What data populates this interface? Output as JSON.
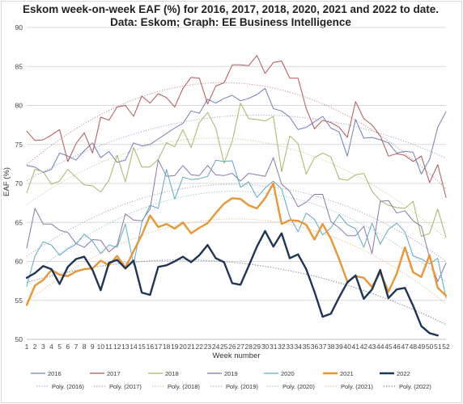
{
  "chart_data": {
    "type": "line",
    "title": "Eskom week-on-week EAF (%) for 2016, 2017, 2018, 2020, 2021 and 2022 to date.",
    "subtitle": "Data: Eskom; Graph: EE Business Intelligence",
    "xlabel": "Week number",
    "ylabel": "EAF (%)",
    "x": [
      1,
      2,
      3,
      4,
      5,
      6,
      7,
      8,
      9,
      10,
      11,
      12,
      13,
      14,
      15,
      16,
      17,
      18,
      19,
      20,
      21,
      22,
      23,
      24,
      25,
      26,
      27,
      28,
      29,
      30,
      31,
      32,
      33,
      34,
      35,
      36,
      37,
      38,
      39,
      40,
      41,
      42,
      43,
      44,
      45,
      46,
      47,
      48,
      49,
      50,
      51,
      52
    ],
    "ylim": [
      50,
      90
    ],
    "yticks": [
      50,
      55,
      60,
      65,
      70,
      75,
      80,
      85,
      90
    ],
    "grid": "horizontal",
    "legend_position": "bottom",
    "series": [
      {
        "name": "2016",
        "color": "#7080b8",
        "width": 1,
        "values": [
          72.3,
          72.1,
          71.4,
          71.8,
          73.9,
          73.5,
          73.0,
          74.2,
          75.2,
          73.3,
          74.1,
          72.7,
          73.0,
          75.2,
          74.8,
          75.0,
          75.7,
          76.4,
          77.1,
          77.7,
          79.3,
          79.0,
          80.8,
          80.3,
          80.9,
          81.3,
          80.6,
          80.9,
          81.4,
          82.2,
          79.6,
          79.3,
          78.5,
          76.9,
          77.2,
          77.9,
          78.6,
          77.1,
          76.6,
          73.5,
          78.2,
          75.8,
          75.9,
          75.6,
          75.2,
          73.9,
          74.1,
          74.0,
          71.2,
          73.1,
          77.2,
          79.2
        ]
      },
      {
        "name": "2017",
        "color": "#b05555",
        "width": 1,
        "values": [
          76.7,
          75.5,
          75.6,
          76.2,
          76.9,
          72.8,
          75.1,
          76.5,
          73.9,
          78.5,
          78.1,
          79.8,
          80.0,
          78.6,
          81.2,
          80.3,
          81.5,
          81.0,
          79.8,
          82.2,
          83.6,
          83.5,
          80.2,
          82.5,
          82.9,
          85.2,
          85.2,
          85.1,
          86.4,
          84.1,
          85.5,
          85.7,
          83.5,
          83.5,
          79.6,
          77.0,
          78.1,
          77.8,
          77.2,
          75.9,
          80.5,
          78.3,
          77.5,
          76.1,
          73.5,
          73.8,
          73.6,
          72.8,
          73.5,
          70.1,
          72.4,
          68.2
        ]
      },
      {
        "name": "2018",
        "color": "#a8b468",
        "width": 1,
        "values": [
          68.8,
          71.8,
          71.5,
          69.9,
          70.3,
          71.8,
          70.8,
          69.8,
          69.7,
          68.9,
          70.4,
          73.6,
          70.2,
          74.6,
          72.1,
          72.1,
          73.1,
          75.2,
          74.7,
          76.9,
          74.6,
          77.8,
          79.1,
          77.1,
          72.6,
          75.4,
          80.3,
          78.3,
          78.2,
          78.0,
          78.6,
          71.5,
          76.1,
          75.1,
          71.2,
          73.3,
          73.9,
          73.4,
          70.6,
          70.4,
          71.1,
          71.3,
          69.0,
          67.8,
          67.2,
          66.9,
          66.8,
          67.7,
          63.2,
          63.6,
          66.7,
          63.1
        ]
      },
      {
        "name": "2019",
        "color": "#8878a8",
        "width": 1,
        "values": [
          61.7,
          66.8,
          64.8,
          64.8,
          64.0,
          63.7,
          62.3,
          61.8,
          62.8,
          62.7,
          61.2,
          62.1,
          66.1,
          65.3,
          65.2,
          66.7,
          73.0,
          70.9,
          71.0,
          72.3,
          71.1,
          71.0,
          72.3,
          71.1,
          71.0,
          71.3,
          70.3,
          71.3,
          71.1,
          70.9,
          73.3,
          69.9,
          69.0,
          67.0,
          67.6,
          68.6,
          68.6,
          65.1,
          64.3,
          63.3,
          63.3,
          64.5,
          61.0,
          67.7,
          67.8,
          66.2,
          66.5,
          65.2,
          64.5,
          60.5,
          57.4,
          59.8
        ]
      },
      {
        "name": "2020",
        "color": "#60a8c0",
        "width": 1,
        "values": [
          56.8,
          60.7,
          62.5,
          62.1,
          60.8,
          61.6,
          62.2,
          63.5,
          62.6,
          61.0,
          62.1,
          61.8,
          64.8,
          59.6,
          65.0,
          67.2,
          66.8,
          71.8,
          68.0,
          70.8,
          70.5,
          70.6,
          70.9,
          73.0,
          72.8,
          72.9,
          69.5,
          70.2,
          68.2,
          69.4,
          70.3,
          69.3,
          65.7,
          63.8,
          66.2,
          65.4,
          63.4,
          64.3,
          66.0,
          64.7,
          64.2,
          61.8,
          64.9,
          62.2,
          64.1,
          64.9,
          63.8,
          60.7,
          60.3,
          59.7,
          60.4,
          55.3
        ]
      },
      {
        "name": "2021",
        "color": "#e8963a",
        "width": 2.4,
        "values": [
          54.4,
          56.9,
          57.6,
          58.9,
          58.3,
          58.1,
          58.7,
          59.0,
          59.1,
          60.1,
          59.5,
          60.7,
          59.2,
          61.3,
          63.4,
          65.9,
          64.4,
          64.8,
          64.2,
          65.0,
          63.6,
          64.3,
          64.9,
          66.2,
          67.4,
          68.1,
          68.0,
          67.2,
          66.8,
          68.1,
          70.0,
          64.8,
          65.3,
          65.2,
          64.7,
          62.8,
          64.8,
          62.9,
          60.3,
          57.4,
          58.1,
          57.9,
          56.7,
          58.6,
          56.1,
          58.4,
          61.8,
          58.6,
          58.0,
          60.8,
          56.6,
          55.6
        ]
      },
      {
        "name": "2022",
        "color": "#1e3554",
        "width": 2.4,
        "values": [
          57.9,
          58.5,
          59.4,
          59.0,
          57.1,
          59.3,
          60.3,
          60.6,
          58.9,
          56.3,
          59.8,
          60.2,
          59.1,
          60.1,
          56.0,
          55.7,
          59.3,
          59.5,
          60.0,
          60.6,
          59.9,
          60.8,
          62.1,
          60.4,
          59.9,
          57.2,
          57.0,
          59.4,
          61.9,
          63.9,
          61.9,
          63.6,
          60.4,
          60.9,
          59.0,
          56.1,
          52.9,
          53.3,
          55.4,
          57.3,
          58.2,
          55.2,
          56.4,
          58.9,
          55.3,
          56.4,
          56.6,
          54.3,
          51.7,
          50.8,
          50.5,
          null
        ]
      }
    ],
    "trendlines": [
      {
        "name": "Poly. (2016)",
        "color": "#9aa6cc"
      },
      {
        "name": "Poly. (2017)",
        "color": "#cc8a8a"
      },
      {
        "name": "Poly. (2018)",
        "color": "#c4cc98"
      },
      {
        "name": "Poly. (2019)",
        "color": "#ada2c4"
      },
      {
        "name": "Poly. (2020)",
        "color": "#92c4d6"
      },
      {
        "name": "Poly. (2021)",
        "color": "#f0b87a"
      },
      {
        "name": "Poly. (2022)",
        "color": "#6a7a90"
      }
    ]
  }
}
